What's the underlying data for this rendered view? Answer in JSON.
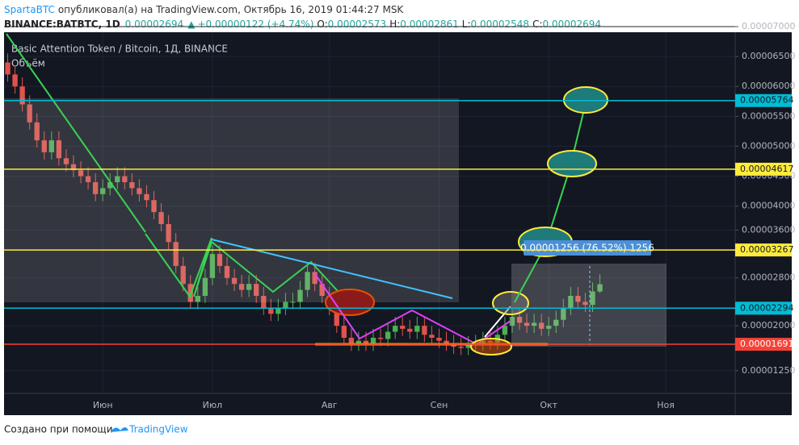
{
  "header": {
    "author": "SpartaBTC",
    "published": "опубликовал(а) на TradingView.com, Октябрь 16, 2019 01:44:27 MSK",
    "symbol": "BINANCE:BATBTC, 1D",
    "last": "0.00002694",
    "change": "+0.00000122 (+4.74%)",
    "ohlc": [
      {
        "label": "O:",
        "value": "0.00002573"
      },
      {
        "label": "H:",
        "value": "0.00002861"
      },
      {
        "label": "L:",
        "value": "0.00002548"
      },
      {
        "label": "C:",
        "value": "0.00002694"
      }
    ]
  },
  "footer": {
    "text": "Создано при помощи",
    "brand": "TradingView"
  },
  "chart_data": {
    "type": "candlestick",
    "title": "Basic Attention Token / Bitcoin, 1Д, BINANCE",
    "subtitle": "Объём",
    "measure_label": "0.00001256 (76.52%) 1256",
    "up_color": "#4caf50",
    "down_color": "#e0534c",
    "ylim": [
      8.7e-06,
      7e-05
    ],
    "yticks": [
      {
        "value": 7e-05,
        "label": "0.00007000"
      },
      {
        "value": 6.5e-05,
        "label": "0.00006500"
      },
      {
        "value": 6e-05,
        "label": "0.00006000"
      },
      {
        "value": 5.5e-05,
        "label": "0.00005500"
      },
      {
        "value": 5e-05,
        "label": "0.00005000"
      },
      {
        "value": 4.5e-05,
        "label": "0.00004500"
      },
      {
        "value": 4e-05,
        "label": "0.00004000"
      },
      {
        "value": 3.6e-05,
        "label": "0.00003600"
      },
      {
        "value": 2.8e-05,
        "label": "0.00002800"
      },
      {
        "value": 2e-05,
        "label": "0.00002000"
      },
      {
        "value": 1.25e-05,
        "label": "0.00001250"
      }
    ],
    "grid": true,
    "hlines": [
      {
        "value": 5.764e-05,
        "color": "#00bcd4"
      },
      {
        "value": 4.617e-05,
        "color": "#ffeb3b"
      },
      {
        "value": 3.267e-05,
        "color": "#ffeb3b"
      },
      {
        "value": 2.294e-05,
        "color": "#00bcd4"
      },
      {
        "value": 1.691e-05,
        "color": "#f44336"
      }
    ],
    "categories": [
      null,
      null,
      null,
      null,
      null,
      null,
      null,
      null,
      null,
      null,
      null,
      null,
      null,
      "Июн",
      null,
      null,
      null,
      null,
      null,
      null,
      null,
      null,
      null,
      null,
      null,
      null,
      null,
      null,
      "Июл",
      null,
      null,
      null,
      null,
      null,
      null,
      null,
      null,
      null,
      null,
      null,
      null,
      null,
      null,
      null,
      "Авг",
      null,
      null,
      null,
      null,
      null,
      null,
      null,
      null,
      null,
      null,
      null,
      null,
      null,
      null,
      "Сен",
      null,
      null,
      null,
      null,
      null,
      null,
      null,
      null,
      null,
      null,
      null,
      null,
      null,
      null,
      "Окт",
      null,
      null,
      null,
      null,
      null,
      null,
      null,
      null,
      null,
      null,
      null,
      null,
      null,
      null,
      null,
      "Ноя",
      null,
      null,
      null,
      null,
      null,
      null,
      null,
      null,
      null
    ],
    "open": [
      6.4e-05,
      6.2e-05,
      6e-05,
      5.7e-05,
      5.4e-05,
      5.1e-05,
      4.9e-05,
      5.1e-05,
      4.8e-05,
      4.7e-05,
      4.6e-05,
      4.5e-05,
      4.4e-05,
      4.2e-05,
      4.3e-05,
      4.4e-05,
      4.5e-05,
      4.4e-05,
      4.3e-05,
      4.2e-05,
      4.1e-05,
      3.9e-05,
      3.7e-05,
      3.4e-05,
      3e-05,
      2.7e-05,
      2.4e-05,
      2.5e-05,
      2.8e-05,
      3.2e-05,
      3e-05,
      2.8e-05,
      2.7e-05,
      2.6e-05,
      2.7e-05,
      2.5e-05,
      2.3e-05,
      2.2e-05,
      2.3e-05,
      2.4e-05,
      2.4e-05,
      2.6e-05,
      2.9e-05,
      2.7e-05,
      2.5e-05,
      2.3e-05,
      2e-05,
      1.8e-05,
      1.7e-05,
      1.75e-05,
      1.7e-05,
      1.8e-05,
      1.78e-05,
      1.9e-05,
      2e-05,
      1.95e-05,
      1.9e-05,
      2e-05,
      1.85e-05,
      1.8e-05,
      1.75e-05,
      1.7e-05,
      1.65e-05,
      1.63e-05,
      1.68e-05,
      1.7e-05,
      1.75e-05,
      1.72e-05,
      1.85e-05,
      2e-05,
      2.15e-05,
      2.05e-05,
      2e-05,
      2.05e-05,
      1.95e-05,
      2e-05,
      2.1e-05,
      2.3e-05,
      2.5e-05,
      2.4e-05,
      2.35e-05,
      2.573e-05,
      null,
      null,
      null,
      null,
      null,
      null,
      null,
      null,
      null,
      null,
      null,
      null,
      null,
      null,
      null,
      null,
      null,
      null
    ],
    "high": [
      6.55e-05,
      6.35e-05,
      6.15e-05,
      5.85e-05,
      5.55e-05,
      5.25e-05,
      5.25e-05,
      5.25e-05,
      4.95e-05,
      4.85e-05,
      4.75e-05,
      4.65e-05,
      4.55e-05,
      4.45e-05,
      4.55e-05,
      4.65e-05,
      4.65e-05,
      4.55e-05,
      4.45e-05,
      4.35e-05,
      4.25e-05,
      4.05e-05,
      3.85e-05,
      3.55e-05,
      3.15e-05,
      2.85e-05,
      2.65e-05,
      2.95e-05,
      3.35e-05,
      3.35e-05,
      3.15e-05,
      2.95e-05,
      2.85e-05,
      2.85e-05,
      2.85e-05,
      2.65e-05,
      2.45e-05,
      2.45e-05,
      2.55e-05,
      2.55e-05,
      2.75e-05,
      3.05e-05,
      3.05e-05,
      2.85e-05,
      2.65e-05,
      2.45e-05,
      2.15e-05,
      1.95e-05,
      1.9e-05,
      1.9e-05,
      1.95e-05,
      1.95e-05,
      2.05e-05,
      2.15e-05,
      2.15e-05,
      2.1e-05,
      2.15e-05,
      2.15e-05,
      2e-05,
      1.95e-05,
      1.9e-05,
      1.85e-05,
      1.8e-05,
      1.83e-05,
      1.85e-05,
      1.9e-05,
      1.9e-05,
      2e-05,
      2.15e-05,
      2.3e-05,
      2.3e-05,
      2.2e-05,
      2.2e-05,
      2.2e-05,
      2.15e-05,
      2.25e-05,
      2.45e-05,
      2.65e-05,
      2.65e-05,
      2.55e-05,
      2.723e-05,
      2.861e-05,
      null,
      null,
      null,
      null,
      null,
      null,
      null,
      null,
      null,
      null,
      null,
      null,
      null,
      null,
      null,
      null,
      null,
      null
    ],
    "low": [
      6.08e-05,
      5.88e-05,
      5.58e-05,
      5.28e-05,
      4.98e-05,
      4.78e-05,
      4.78e-05,
      4.68e-05,
      4.58e-05,
      4.48e-05,
      4.38e-05,
      4.28e-05,
      4.08e-05,
      4.08e-05,
      4.18e-05,
      4.28e-05,
      4.28e-05,
      4.18e-05,
      4.08e-05,
      3.98e-05,
      3.78e-05,
      3.58e-05,
      3.28e-05,
      2.88e-05,
      2.58e-05,
      2.28e-05,
      2.28e-05,
      2.38e-05,
      2.68e-05,
      2.88e-05,
      2.68e-05,
      2.58e-05,
      2.48e-05,
      2.48e-05,
      2.38e-05,
      2.18e-05,
      2.08e-05,
      2.08e-05,
      2.18e-05,
      2.28e-05,
      2.28e-05,
      2.48e-05,
      2.58e-05,
      2.38e-05,
      2.18e-05,
      1.88e-05,
      1.68e-05,
      1.58e-05,
      1.58e-05,
      1.58e-05,
      1.58e-05,
      1.66e-05,
      1.66e-05,
      1.78e-05,
      1.83e-05,
      1.78e-05,
      1.78e-05,
      1.73e-05,
      1.68e-05,
      1.63e-05,
      1.58e-05,
      1.53e-05,
      1.51e-05,
      1.51e-05,
      1.56e-05,
      1.58e-05,
      1.6e-05,
      1.6e-05,
      1.73e-05,
      1.88e-05,
      1.93e-05,
      1.88e-05,
      1.88e-05,
      1.83e-05,
      1.83e-05,
      1.88e-05,
      1.98e-05,
      2.18e-05,
      2.28e-05,
      2.23e-05,
      2.23e-05,
      2.548e-05,
      null,
      null,
      null,
      null,
      null,
      null,
      null,
      null,
      null,
      null,
      null,
      null,
      null,
      null,
      null,
      null,
      null,
      null
    ],
    "close": [
      6.2e-05,
      6e-05,
      5.7e-05,
      5.4e-05,
      5.1e-05,
      4.9e-05,
      5.1e-05,
      4.8e-05,
      4.7e-05,
      4.6e-05,
      4.5e-05,
      4.4e-05,
      4.2e-05,
      4.3e-05,
      4.4e-05,
      4.5e-05,
      4.4e-05,
      4.3e-05,
      4.2e-05,
      4.1e-05,
      3.9e-05,
      3.7e-05,
      3.4e-05,
      3e-05,
      2.7e-05,
      2.4e-05,
      2.5e-05,
      2.8e-05,
      3.2e-05,
      3e-05,
      2.8e-05,
      2.7e-05,
      2.6e-05,
      2.7e-05,
      2.5e-05,
      2.3e-05,
      2.2e-05,
      2.3e-05,
      2.4e-05,
      2.4e-05,
      2.6e-05,
      2.9e-05,
      2.7e-05,
      2.5e-05,
      2.3e-05,
      2e-05,
      1.8e-05,
      1.7e-05,
      1.75e-05,
      1.7e-05,
      1.8e-05,
      1.78e-05,
      1.9e-05,
      2e-05,
      1.95e-05,
      1.9e-05,
      2e-05,
      1.85e-05,
      1.8e-05,
      1.75e-05,
      1.7e-05,
      1.65e-05,
      1.63e-05,
      1.68e-05,
      1.7e-05,
      1.75e-05,
      1.72e-05,
      1.85e-05,
      2e-05,
      2.15e-05,
      2.05e-05,
      2e-05,
      2.05e-05,
      1.95e-05,
      2e-05,
      2.1e-05,
      2.3e-05,
      2.5e-05,
      2.4e-05,
      2.35e-05,
      2.573e-05,
      2.694e-05,
      null,
      null,
      null,
      null,
      null,
      null,
      null,
      null,
      null,
      null,
      null,
      null,
      null,
      null,
      null,
      null,
      null,
      null
    ]
  }
}
